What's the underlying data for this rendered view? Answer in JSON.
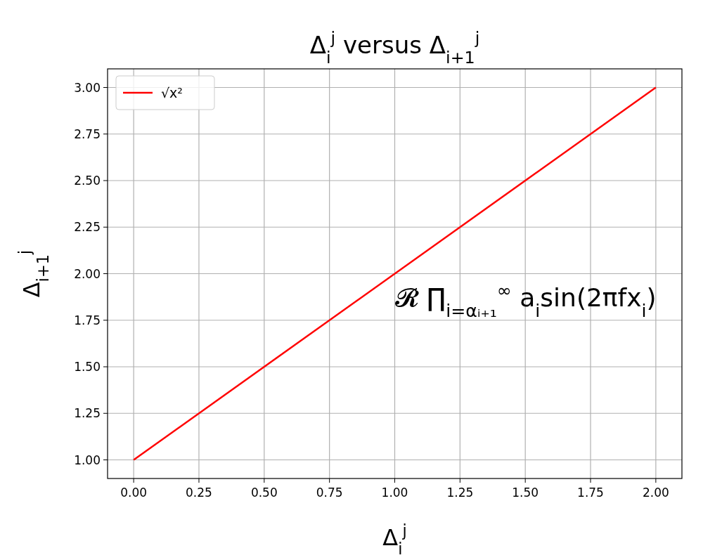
{
  "chart_data": {
    "type": "line",
    "title": "Δ$_{i}$$^{j}$ versus Δ$_{i+1}$$^{j}$",
    "xlabel": "Δ$_{i}$$^{j}$",
    "ylabel": "Δ$_{i+1}$$^{j}$",
    "x": [
      0,
      2
    ],
    "series": [
      {
        "name": "√x²",
        "color": "#ff0000",
        "values": [
          1,
          3
        ]
      }
    ],
    "xlim": [
      -0.1,
      2.1
    ],
    "ylim": [
      0.9,
      3.1
    ],
    "xticks": [
      {
        "value": 0,
        "label": "0.00"
      },
      {
        "value": 0.25,
        "label": "0.25"
      },
      {
        "value": 0.5,
        "label": "0.50"
      },
      {
        "value": 0.75,
        "label": "0.75"
      },
      {
        "value": 1,
        "label": "1.00"
      },
      {
        "value": 1.25,
        "label": "1.25"
      },
      {
        "value": 1.5,
        "label": "1.50"
      },
      {
        "value": 1.75,
        "label": "1.75"
      },
      {
        "value": 2,
        "label": "2.00"
      }
    ],
    "yticks": [
      {
        "value": 1,
        "label": "1.00"
      },
      {
        "value": 1.25,
        "label": "1.25"
      },
      {
        "value": 1.5,
        "label": "1.50"
      },
      {
        "value": 1.75,
        "label": "1.75"
      },
      {
        "value": 2,
        "label": "2.00"
      },
      {
        "value": 2.25,
        "label": "2.25"
      },
      {
        "value": 2.5,
        "label": "2.50"
      },
      {
        "value": 2.75,
        "label": "2.75"
      },
      {
        "value": 3,
        "label": "3.00"
      }
    ],
    "grid": true,
    "legend": "top left",
    "annotations": [
      "𝓡 ∏$_{i=αᵢ₊₁}$$^{∞}$ a$_{i}$sin(2πfx$_{i}$)"
    ]
  }
}
